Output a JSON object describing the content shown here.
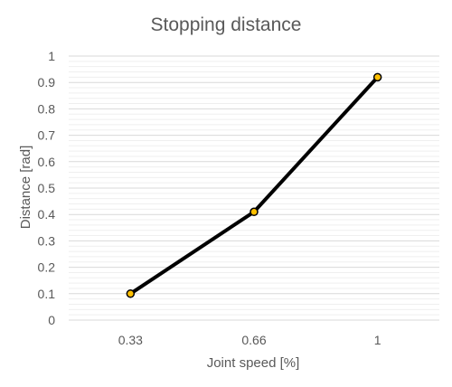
{
  "chart_data": {
    "type": "line",
    "title": "Stopping distance",
    "xlabel": "Joint speed [%]",
    "ylabel": "Distance [rad]",
    "categories": [
      "0.33",
      "0.66",
      "1"
    ],
    "series": [
      {
        "values": [
          0.1,
          0.41,
          0.92
        ],
        "line_color": "#000000",
        "marker_color": "#FFC000",
        "marker_edge_color": "#000000"
      }
    ],
    "ylim": [
      0,
      1
    ],
    "yticks": [
      "0",
      "0.1",
      "0.2",
      "0.3",
      "0.4",
      "0.5",
      "0.6",
      "0.7",
      "0.8",
      "0.9",
      "1"
    ],
    "grid": true,
    "legend": "none"
  }
}
